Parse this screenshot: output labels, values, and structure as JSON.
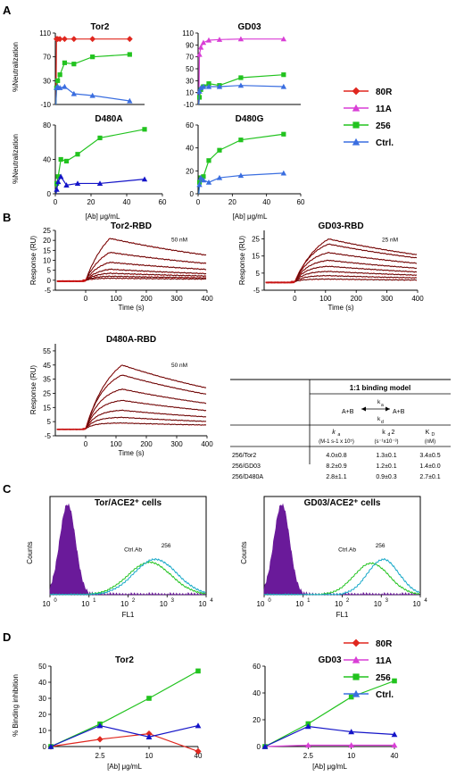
{
  "figure": {
    "panel_letters": [
      "A",
      "B",
      "C",
      "D"
    ]
  },
  "colors": {
    "80R": "#e0271f",
    "11A": "#d93fd6",
    "256": "#22c31f",
    "Ctrl.": "#3a6ee0",
    "Ctrl_dark": "#1414c8",
    "purple": "#6a1a9a",
    "cyan": "#16a8c8",
    "red_fit": "#c81414"
  },
  "chart_data": [
    {
      "id": "A-Tor2",
      "type": "line",
      "title": "Tor2",
      "ylabel": "%Neutralization",
      "xlabel": "",
      "ylim": [
        -10,
        110
      ],
      "xlim": [
        0,
        60
      ],
      "yticks": [
        "-10",
        "30",
        "70",
        "110"
      ],
      "xticks": [],
      "series": [
        {
          "name": "80R",
          "color": "#e0271f",
          "marker": "diamond",
          "x": [
            0.4,
            0.8,
            1.6,
            3.1,
            6.25,
            12.5,
            25,
            50
          ],
          "y": [
            -10,
            100,
            100,
            100,
            100,
            100,
            100,
            100
          ]
        },
        {
          "name": "256",
          "color": "#22c31f",
          "marker": "square",
          "x": [
            0.4,
            0.8,
            1.6,
            3.1,
            6.25,
            12.5,
            25,
            50
          ],
          "y": [
            -10,
            18,
            30,
            40,
            60,
            58,
            70,
            74
          ]
        },
        {
          "name": "Ctrl.",
          "color": "#3a6ee0",
          "marker": "triangle",
          "x": [
            0.4,
            0.8,
            1.6,
            3.1,
            6.25,
            12.5,
            25,
            50
          ],
          "y": [
            -10,
            18,
            20,
            18,
            20,
            8,
            5,
            -4
          ]
        }
      ]
    },
    {
      "id": "A-GD03",
      "type": "line",
      "title": "GD03",
      "ylabel": "",
      "xlabel": "",
      "ylim": [
        -10,
        110
      ],
      "xlim": [
        0,
        60
      ],
      "yticks": [
        "-10",
        "10",
        "30",
        "50",
        "70",
        "90",
        "110"
      ],
      "xticks": [],
      "series": [
        {
          "name": "11A",
          "color": "#d93fd6",
          "marker": "triangle",
          "x": [
            0.4,
            0.8,
            1.6,
            3.1,
            6.25,
            12.5,
            25,
            50
          ],
          "y": [
            -10,
            74,
            86,
            94,
            98,
            99,
            100,
            100
          ]
        },
        {
          "name": "256",
          "color": "#22c31f",
          "marker": "square",
          "x": [
            0.4,
            0.8,
            1.6,
            3.1,
            6.25,
            12.5,
            25,
            50
          ],
          "y": [
            -10,
            2,
            15,
            20,
            25,
            22,
            35,
            40
          ]
        },
        {
          "name": "Ctrl.",
          "color": "#3a6ee0",
          "marker": "triangle",
          "x": [
            0.4,
            0.8,
            1.6,
            3.1,
            6.25,
            12.5,
            25,
            50
          ],
          "y": [
            -10,
            12,
            18,
            20,
            20,
            20,
            22,
            20
          ]
        }
      ]
    },
    {
      "id": "A-D480A",
      "type": "line",
      "title": "D480A",
      "ylabel": "%Neutralization",
      "xlabel": "[Ab] μg/mL",
      "ylim": [
        0,
        80
      ],
      "xlim": [
        0,
        60
      ],
      "yticks": [
        "0",
        "40",
        "80"
      ],
      "xticks": [
        "0",
        "20",
        "40",
        "60"
      ],
      "series": [
        {
          "name": "256",
          "color": "#22c31f",
          "marker": "square",
          "x": [
            0.4,
            0.8,
            1.6,
            3.1,
            6.25,
            12.5,
            25,
            50
          ],
          "y": [
            0,
            12,
            20,
            40,
            38,
            46,
            65,
            75
          ]
        },
        {
          "name": "Ctrl.",
          "color": "#1414c8",
          "marker": "triangle",
          "x": [
            0.4,
            0.8,
            1.6,
            3.1,
            6.25,
            12.5,
            25,
            50
          ],
          "y": [
            0,
            5,
            14,
            20,
            10,
            12,
            12,
            17
          ]
        }
      ]
    },
    {
      "id": "A-D480G",
      "type": "line",
      "title": "D480G",
      "ylabel": "",
      "xlabel": "[Ab] μg/mL",
      "ylim": [
        0,
        60
      ],
      "xlim": [
        0,
        60
      ],
      "yticks": [
        "0",
        "20",
        "40",
        "60"
      ],
      "xticks": [
        "0",
        "20",
        "40",
        "60"
      ],
      "series": [
        {
          "name": "256",
          "color": "#22c31f",
          "marker": "square",
          "x": [
            0.4,
            0.8,
            1.6,
            3.1,
            6.25,
            12.5,
            25,
            50
          ],
          "y": [
            0,
            10,
            14,
            15,
            29,
            38,
            47,
            52
          ]
        },
        {
          "name": "Ctrl.",
          "color": "#3a6ee0",
          "marker": "triangle",
          "x": [
            0.4,
            0.8,
            1.6,
            3.1,
            6.25,
            12.5,
            25,
            50
          ],
          "y": [
            0,
            8,
            14,
            12,
            10,
            14,
            16,
            18
          ]
        }
      ]
    },
    {
      "id": "B-Tor2",
      "type": "line",
      "title": "Tor2-RBD",
      "ylabel": "Response (RU)",
      "xlabel": "Time (s)",
      "ylim": [
        -5,
        25
      ],
      "xlim": [
        -100,
        400
      ],
      "yticks": [
        "-5",
        "0",
        "5",
        "10",
        "15",
        "20",
        "25"
      ],
      "xticks": [
        "0",
        "100",
        "200",
        "300",
        "400"
      ],
      "annotation": "50 nM",
      "assoc_end": 80,
      "plateaus": [
        21,
        14,
        9,
        5.5,
        3.5,
        2,
        1
      ]
    },
    {
      "id": "B-GD03",
      "type": "line",
      "title": "GD03-RBD",
      "ylabel": "Response (RU)",
      "xlabel": "Time (s)",
      "ylim": [
        -5,
        30
      ],
      "xlim": [
        -100,
        400
      ],
      "yticks": [
        "-5",
        "5",
        "15",
        "25"
      ],
      "xticks": [
        "0",
        "100",
        "200",
        "300",
        "400"
      ],
      "annotation": "25 nM",
      "assoc_end": 110,
      "plateaus": [
        25,
        22,
        17,
        12.5,
        9,
        6,
        3.5,
        1.5
      ]
    },
    {
      "id": "B-D480A",
      "type": "line",
      "title": "D480A-RBD",
      "ylabel": "Response (RU)",
      "xlabel": "Time (s)",
      "ylim": [
        -5,
        60
      ],
      "xlim": [
        -100,
        400
      ],
      "yticks": [
        "-5",
        "5",
        "15",
        "25",
        "35",
        "45",
        "55"
      ],
      "xticks": [
        "0",
        "100",
        "200",
        "300",
        "400"
      ],
      "annotation": "50 nM",
      "assoc_end": 120,
      "plateaus": [
        45,
        38,
        28,
        20,
        13,
        8,
        4
      ]
    },
    {
      "id": "C-Tor",
      "type": "area",
      "title": "Tor/ACE2⁺ cells",
      "ylabel": "Counts",
      "xlabel": "FL1",
      "xticks_base": "10",
      "xticks_exp": [
        "0",
        "1",
        "2",
        "3",
        "4"
      ],
      "annotations": [
        "Ctrl.Ab",
        "256"
      ],
      "series": [
        {
          "name": "isotype",
          "color": "#6a1a9a",
          "fill": true,
          "center_log": 0.45,
          "width": 0.2,
          "height": 0.92
        },
        {
          "name": "Ctrl.Ab",
          "color": "#22c31f",
          "center_log": 2.55,
          "width": 0.55,
          "height": 0.33
        },
        {
          "name": "256",
          "color": "#16a8c8",
          "center_log": 2.7,
          "width": 0.55,
          "height": 0.36
        }
      ]
    },
    {
      "id": "C-GD03",
      "type": "area",
      "title": "GD03/ACE2⁺ cells",
      "ylabel": "Counts",
      "xlabel": "FL1",
      "xticks_base": "10",
      "xticks_exp": [
        "0",
        "1",
        "2",
        "3",
        "4"
      ],
      "annotations": [
        "Ctrl.Ab",
        "256"
      ],
      "series": [
        {
          "name": "isotype",
          "color": "#6a1a9a",
          "fill": true,
          "center_log": 0.45,
          "width": 0.2,
          "height": 0.92
        },
        {
          "name": "Ctrl.Ab",
          "color": "#22c31f",
          "center_log": 2.75,
          "width": 0.45,
          "height": 0.32
        },
        {
          "name": "256",
          "color": "#16a8c8",
          "center_log": 3.05,
          "width": 0.4,
          "height": 0.36
        }
      ]
    },
    {
      "id": "D-Tor2",
      "type": "line",
      "title": "Tor2",
      "ylabel": "% Binding inhibition",
      "xlabel": "[Ab] μg/mL",
      "ylim": [
        0,
        50
      ],
      "categories": [
        "",
        "2.5",
        "10",
        "40"
      ],
      "yticks": [
        "0",
        "10",
        "20",
        "30",
        "40",
        "50"
      ],
      "series": [
        {
          "name": "80R",
          "color": "#e0271f",
          "marker": "diamond",
          "values": [
            0,
            4.5,
            8,
            -3
          ]
        },
        {
          "name": "256",
          "color": "#22c31f",
          "marker": "square",
          "values": [
            0,
            14,
            30,
            47
          ]
        },
        {
          "name": "Ctrl.",
          "color": "#1414c8",
          "marker": "triangle",
          "values": [
            0,
            13,
            6,
            13
          ]
        }
      ]
    },
    {
      "id": "D-GD03",
      "type": "line",
      "title": "GD03",
      "ylabel": "",
      "xlabel": "[Ab] μg/mL",
      "ylim": [
        0,
        60
      ],
      "categories": [
        "",
        "2.5",
        "10",
        "40"
      ],
      "yticks": [
        "0",
        "20",
        "40",
        "60"
      ],
      "series": [
        {
          "name": "11A",
          "color": "#d93fd6",
          "marker": "triangle",
          "values": [
            0,
            1,
            1,
            1
          ]
        },
        {
          "name": "256",
          "color": "#22c31f",
          "marker": "square",
          "values": [
            0,
            17,
            37,
            49
          ]
        },
        {
          "name": "Ctrl.",
          "color": "#1414c8",
          "marker": "triangle",
          "values": [
            0,
            15,
            11,
            9
          ]
        }
      ]
    }
  ],
  "legends": {
    "A": [
      {
        "name": "80R",
        "color": "#e0271f",
        "marker": "diamond"
      },
      {
        "name": "11A",
        "color": "#d93fd6",
        "marker": "triangle"
      },
      {
        "name": "256",
        "color": "#22c31f",
        "marker": "square"
      },
      {
        "name": "Ctrl.",
        "color": "#3a6ee0",
        "marker": "triangle"
      }
    ],
    "D": [
      {
        "name": "80R",
        "color": "#e0271f",
        "marker": "diamond"
      },
      {
        "name": "11A",
        "color": "#d93fd6",
        "marker": "triangle"
      },
      {
        "name": "256",
        "color": "#22c31f",
        "marker": "square"
      },
      {
        "name": "Ctrl.",
        "color": "#3a6ee0",
        "marker": "triangle"
      }
    ]
  },
  "kinetics_table": {
    "title": "1:1 binding model",
    "ka_label": "k",
    "ka_sub": "a",
    "kd_label": "k",
    "kd_sub": "d",
    "reaction_left": "A+B",
    "reaction_right": "A+B",
    "headers": [
      {
        "sym": "k",
        "sub": "a",
        "unit": "(M-1 s-1 x 10⁵)"
      },
      {
        "sym": "k",
        "sub": "d",
        "tail": "2",
        "unit": "(s⁻¹x10⁻³)"
      },
      {
        "sym": "K",
        "sub": "D",
        "unit": "(nM)"
      }
    ],
    "rows": [
      {
        "label": "256/Tor2",
        "ka": "4.0±0.8",
        "kd": "1.3±0.1",
        "KD": "3.4±0.5"
      },
      {
        "label": "256/GD03",
        "ka": "8.2±0.9",
        "kd": "1.2±0.1",
        "KD": "1.4±0.0"
      },
      {
        "label": "256/D480A",
        "ka": "2.8±1.1",
        "kd": "0.9±0.3",
        "KD": "2.7±0.1"
      }
    ]
  }
}
